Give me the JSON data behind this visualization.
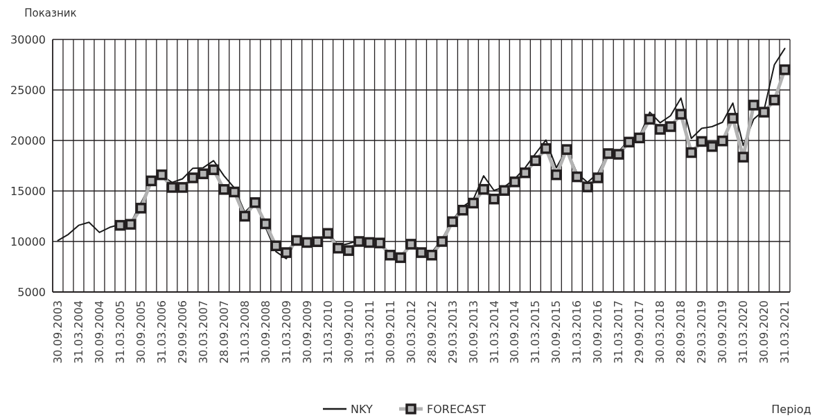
{
  "chart_data": {
    "type": "line",
    "xlabel": "Період",
    "ylabel": "Показник",
    "categories": [
      "30.09.2003",
      null,
      "31.03.2004",
      null,
      "30.09.2004",
      null,
      "31.03.2005",
      null,
      "30.09.2005",
      null,
      "31.03.2006",
      null,
      "29.09.2006",
      null,
      "30.03.2007",
      null,
      "28.09.2007",
      null,
      "31.03.2008",
      null,
      "30.09.2008",
      null,
      "31.03.2009",
      null,
      "30.09.2009",
      null,
      "31.03.2010",
      null,
      "30.09.2010",
      null,
      "31.03.2011",
      null,
      "30.09.2011",
      null,
      "30.03.2012",
      null,
      "28.09.2012",
      null,
      "29.03.2013",
      null,
      "30.09.2013",
      null,
      "31.03.2014",
      null,
      "30.09.2014",
      null,
      "31.03.2015",
      null,
      "30.09.2015",
      null,
      "31.03.2016",
      null,
      "30.09.2016",
      null,
      "31.03.2017",
      null,
      "29.09.2017",
      null,
      "30.03.2018",
      null,
      "28.09.2018",
      null,
      "29.03.2019",
      null,
      "30.09.2019",
      null,
      "31.03.2020",
      null,
      "30.09.2020",
      null,
      "31.03.2021"
    ],
    "series": [
      {
        "name": "NKY",
        "color": "#1a1a1a",
        "marker": "none",
        "values": [
          10100,
          10700,
          11600,
          11900,
          10900,
          11400,
          11700,
          11800,
          13800,
          15800,
          16500,
          15850,
          16200,
          17250,
          17300,
          18000,
          16500,
          15300,
          12900,
          13900,
          11400,
          9000,
          8300,
          10200,
          9900,
          10000,
          11000,
          9550,
          9800,
          10100,
          9900,
          9850,
          8800,
          8400,
          9800,
          9100,
          8900,
          10250,
          12100,
          13450,
          14150,
          16500,
          15050,
          15400,
          16200,
          17300,
          18700,
          20050,
          17300,
          19150,
          16750,
          15850,
          16750,
          18800,
          18900,
          20050,
          20400,
          22800,
          21750,
          22450,
          24200,
          20200,
          21200,
          21370,
          21800,
          23700,
          19500,
          22100,
          23000,
          27500,
          29100
        ]
      },
      {
        "name": "FORECAST",
        "color": "#b3b3b3",
        "marker": "square",
        "values": [
          null,
          null,
          null,
          null,
          null,
          null,
          11600,
          11700,
          13300,
          16000,
          16600,
          15350,
          15350,
          16300,
          16700,
          17100,
          15150,
          14900,
          12500,
          13850,
          11750,
          9570,
          8900,
          10100,
          9900,
          9980,
          10800,
          9340,
          9100,
          10000,
          9900,
          9850,
          8650,
          8400,
          9730,
          8900,
          8650,
          10000,
          11960,
          13100,
          13800,
          15160,
          14200,
          15050,
          15900,
          16800,
          18000,
          19200,
          16600,
          19100,
          16400,
          15400,
          16300,
          18700,
          18630,
          19840,
          20250,
          22100,
          21100,
          21370,
          22600,
          18800,
          19900,
          19400,
          19950,
          22200,
          18350,
          23500,
          22800,
          24000,
          27000
        ]
      }
    ],
    "ylim": [
      5000,
      30000
    ],
    "yticks": [
      5000,
      10000,
      15000,
      20000,
      25000,
      30000
    ],
    "grid": true,
    "legend": "bottom"
  }
}
